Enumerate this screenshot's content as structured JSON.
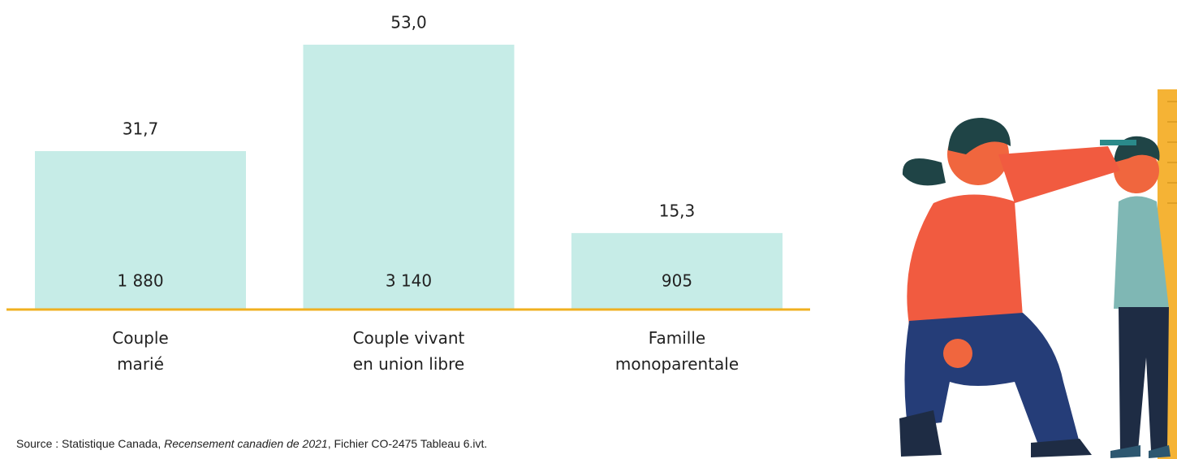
{
  "chart_data": {
    "type": "bar",
    "categories": [
      "Couple\nmarié",
      "Couple vivant\nen union libre",
      "Famille\nmonoparentale"
    ],
    "values": [
      31.7,
      53.0,
      15.3
    ],
    "value_labels": [
      "31,7",
      "53,0",
      "15,3"
    ],
    "counts": [
      1880,
      3140,
      905
    ],
    "count_labels": [
      "1 880",
      "3 140",
      "905"
    ],
    "color": "#c6ece7",
    "baseline_color": "#f0b020",
    "source": {
      "prefix": "Source : Statistique Canada, ",
      "title": "Recensement canadien de 2021",
      "suffix": ", Fichier CO-2475 Tableau 6.ivt."
    }
  }
}
